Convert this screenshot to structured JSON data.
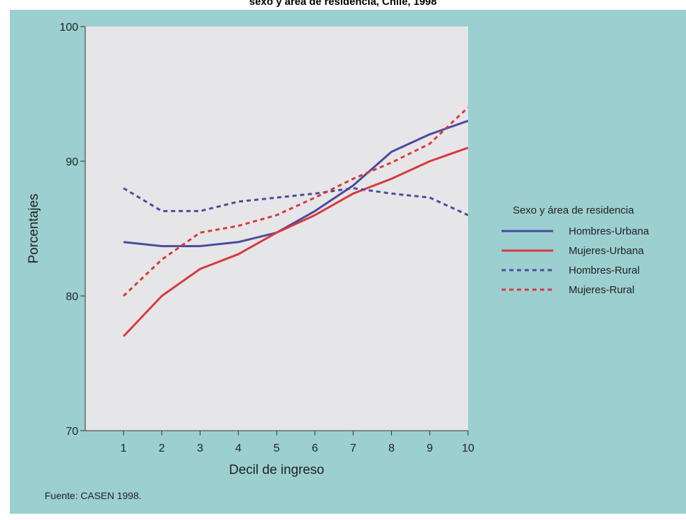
{
  "title": "sexo y área de residencia, Chile, 1998",
  "source": "Fuente: CASEN 1998.",
  "colors": {
    "panel_bg": "#9ccfd0",
    "plot_bg": "#e6e6e8",
    "hombres": "#4b4a9e",
    "mujeres": "#d9383c"
  },
  "chart_data": {
    "type": "line",
    "title": "sexo y área de residencia, Chile, 1998",
    "xlabel": "Decil de ingreso",
    "ylabel": "Porcentajes",
    "x": [
      1,
      2,
      3,
      4,
      5,
      6,
      7,
      8,
      9,
      10
    ],
    "xlim": [
      0,
      10
    ],
    "ylim": [
      70,
      100
    ],
    "yticks": [
      70,
      80,
      90,
      100
    ],
    "grid": false,
    "legend": {
      "title": "Sexo y área de residencia",
      "position": "right"
    },
    "series": [
      {
        "name": "Hombres-Urbana",
        "style": "solid",
        "color": "#4b4a9e",
        "values": [
          84.0,
          83.7,
          83.7,
          84.0,
          84.7,
          86.3,
          88.2,
          90.7,
          92.0,
          93.0
        ]
      },
      {
        "name": "Mujeres-Urbana",
        "style": "solid",
        "color": "#d9383c",
        "values": [
          77.0,
          80.0,
          82.0,
          83.1,
          84.7,
          86.0,
          87.6,
          88.7,
          90.0,
          91.0
        ]
      },
      {
        "name": "Hombres-Rural",
        "style": "dashed",
        "color": "#4b4a9e",
        "values": [
          88.0,
          86.3,
          86.3,
          87.0,
          87.3,
          87.6,
          88.0,
          87.6,
          87.3,
          86.0
        ]
      },
      {
        "name": "Mujeres-Rural",
        "style": "dashed",
        "color": "#d9383c",
        "values": [
          80.0,
          82.7,
          84.7,
          85.2,
          86.0,
          87.3,
          88.7,
          89.9,
          91.3,
          94.0
        ]
      }
    ]
  }
}
